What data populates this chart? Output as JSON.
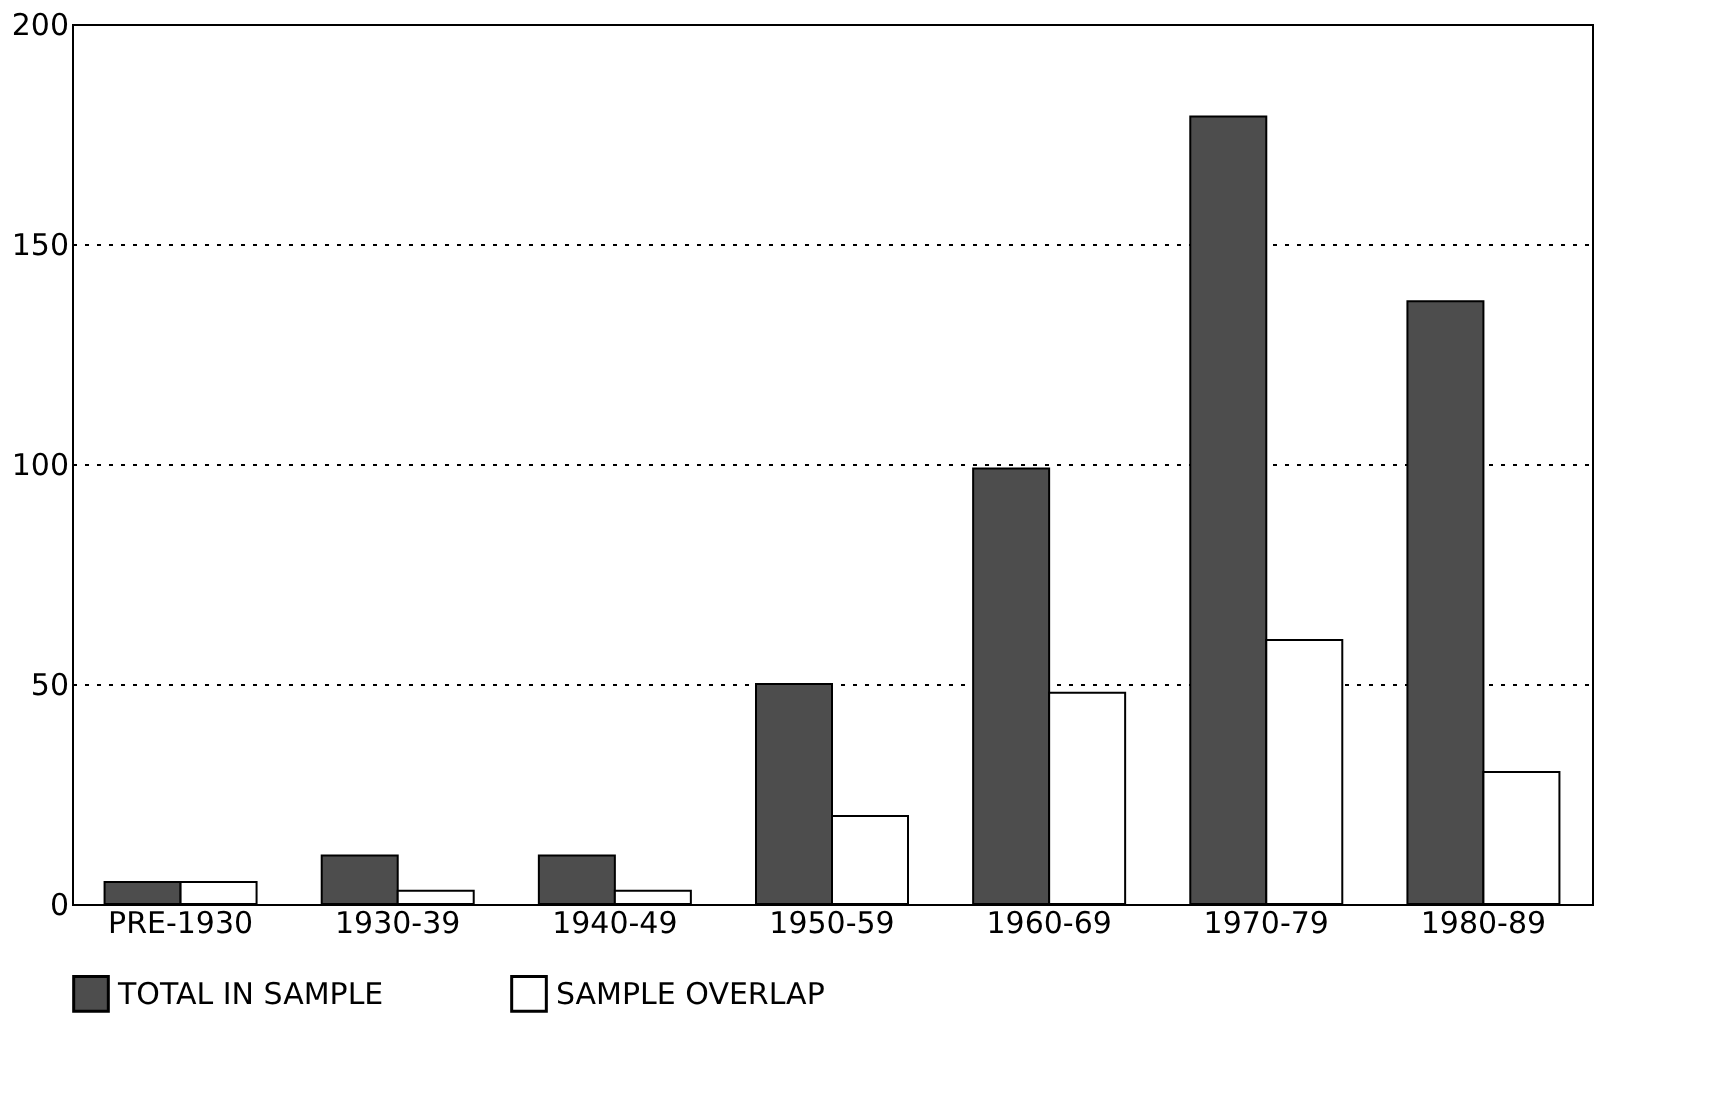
{
  "chart_data": {
    "type": "bar",
    "categories": [
      "PRE-1930",
      "1930-39",
      "1940-49",
      "1950-59",
      "1960-69",
      "1970-79",
      "1980-89"
    ],
    "series": [
      {
        "name": "TOTAL IN SAMPLE",
        "color": "#4d4d4d",
        "values": [
          5,
          11,
          11,
          50,
          99,
          179,
          137
        ]
      },
      {
        "name": "SAMPLE OVERLAP",
        "color": "#ffffff",
        "values": [
          5,
          3,
          3,
          20,
          48,
          60,
          30
        ]
      }
    ],
    "ylim": [
      0,
      200
    ],
    "yticks": [
      0,
      50,
      100,
      150,
      200
    ],
    "grid": "y",
    "legend": "bottom"
  }
}
